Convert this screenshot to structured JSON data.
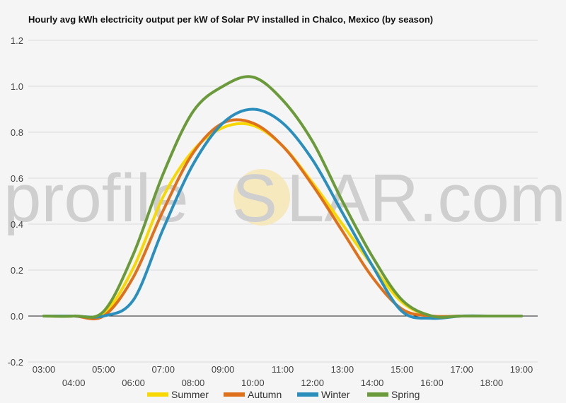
{
  "watermark": {
    "left": "profile",
    "s": "S",
    "right": "LAR.com"
  },
  "chart_data": {
    "type": "line",
    "title": "Hourly avg kWh electricity output per kW of Solar PV installed in Chalco, Mexico (by season)",
    "xlabel": "",
    "ylabel": "",
    "x": [
      "03:00",
      "04:00",
      "05:00",
      "06:00",
      "07:00",
      "08:00",
      "09:00",
      "10:00",
      "11:00",
      "12:00",
      "13:00",
      "14:00",
      "15:00",
      "16:00",
      "17:00",
      "18:00",
      "19:00"
    ],
    "ylim": [
      -0.2,
      1.2
    ],
    "yticks": [
      "1.2",
      "1.0",
      "0.8",
      "0.6",
      "0.4",
      "0.2",
      "0.0",
      "-0.2"
    ],
    "grid": true,
    "legend": "bottom",
    "series": [
      {
        "name": "Summer",
        "color": "#f7d800",
        "values": [
          0.0,
          0.0,
          0.01,
          0.21,
          0.52,
          0.72,
          0.82,
          0.83,
          0.74,
          0.58,
          0.4,
          0.22,
          0.06,
          0.0,
          0.0,
          0.0,
          0.0
        ]
      },
      {
        "name": "Autumn",
        "color": "#e0711c",
        "values": [
          0.0,
          0.0,
          0.0,
          0.17,
          0.46,
          0.71,
          0.84,
          0.84,
          0.74,
          0.57,
          0.37,
          0.17,
          0.03,
          0.0,
          0.0,
          0.0,
          0.0
        ]
      },
      {
        "name": "Winter",
        "color": "#2a8fbd",
        "values": [
          0.0,
          0.0,
          0.0,
          0.07,
          0.38,
          0.66,
          0.84,
          0.9,
          0.84,
          0.68,
          0.45,
          0.22,
          0.02,
          -0.01,
          0.0,
          0.0,
          0.0
        ]
      },
      {
        "name": "Spring",
        "color": "#6a9a3a",
        "values": [
          0.0,
          0.0,
          0.02,
          0.27,
          0.62,
          0.89,
          1.0,
          1.04,
          0.94,
          0.76,
          0.5,
          0.26,
          0.07,
          0.0,
          0.0,
          0.0,
          0.0
        ]
      }
    ]
  }
}
